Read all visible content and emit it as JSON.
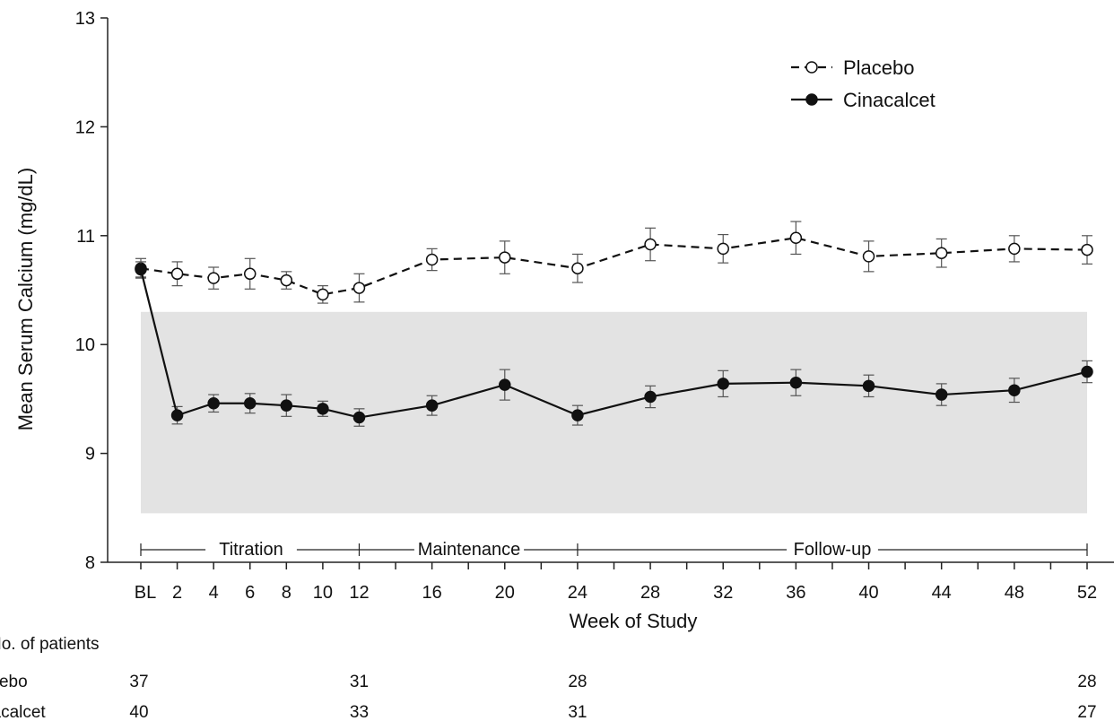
{
  "chart_data": {
    "type": "line",
    "xlabel": "Week of Study",
    "ylabel": "Mean Serum Calcium (mg/dL)",
    "ylim": [
      8,
      13
    ],
    "yticks": [
      8,
      9,
      10,
      11,
      12,
      13
    ],
    "xticks": [
      {
        "value": 0,
        "label": "BL"
      },
      {
        "value": 2,
        "label": "2"
      },
      {
        "value": 4,
        "label": "4"
      },
      {
        "value": 6,
        "label": "6"
      },
      {
        "value": 8,
        "label": "8"
      },
      {
        "value": 10,
        "label": "10"
      },
      {
        "value": 12,
        "label": "12"
      },
      {
        "value": 16,
        "label": "16"
      },
      {
        "value": 20,
        "label": "20"
      },
      {
        "value": 24,
        "label": "24"
      },
      {
        "value": 28,
        "label": "28"
      },
      {
        "value": 32,
        "label": "32"
      },
      {
        "value": 36,
        "label": "36"
      },
      {
        "value": 40,
        "label": "40"
      },
      {
        "value": 44,
        "label": "44"
      },
      {
        "value": 48,
        "label": "48"
      },
      {
        "value": 52,
        "label": "52"
      }
    ],
    "normal_range_band": {
      "x": [
        0,
        52
      ],
      "y": [
        8.45,
        10.3
      ],
      "color": "#e3e3e3"
    },
    "legend": {
      "placement": "top-right"
    },
    "grid": false,
    "series": [
      {
        "name": "Placebo",
        "style": "dashed",
        "marker": "open-circle",
        "x": [
          0,
          2,
          4,
          6,
          8,
          10,
          12,
          16,
          20,
          24,
          28,
          32,
          36,
          40,
          44,
          48,
          52
        ],
        "y": [
          10.7,
          10.65,
          10.61,
          10.65,
          10.59,
          10.46,
          10.52,
          10.78,
          10.8,
          10.7,
          10.92,
          10.88,
          10.98,
          10.81,
          10.84,
          10.88,
          10.87
        ],
        "err": [
          0.09,
          0.11,
          0.1,
          0.14,
          0.08,
          0.08,
          0.13,
          0.1,
          0.15,
          0.13,
          0.15,
          0.13,
          0.15,
          0.14,
          0.13,
          0.12,
          0.13
        ]
      },
      {
        "name": "Cinacalcet",
        "style": "solid",
        "marker": "filled-circle",
        "x": [
          0,
          2,
          4,
          6,
          8,
          10,
          12,
          16,
          20,
          24,
          28,
          32,
          36,
          40,
          44,
          48,
          52
        ],
        "y": [
          10.69,
          9.35,
          9.46,
          9.46,
          9.44,
          9.41,
          9.33,
          9.44,
          9.63,
          9.35,
          9.52,
          9.64,
          9.65,
          9.62,
          9.54,
          9.58,
          9.75
        ],
        "err": [
          0.07,
          0.08,
          0.08,
          0.09,
          0.1,
          0.07,
          0.08,
          0.09,
          0.14,
          0.09,
          0.1,
          0.12,
          0.12,
          0.1,
          0.1,
          0.11,
          0.1
        ]
      }
    ],
    "phases": [
      {
        "label": "Titration",
        "from": 0,
        "to": 12
      },
      {
        "label": "Maintenance",
        "from": 12,
        "to": 24
      },
      {
        "label": "Follow-up",
        "from": 24,
        "to": 52
      }
    ]
  },
  "patients": {
    "title": "No. of patients",
    "rows": [
      {
        "label": "Placebo",
        "counts": [
          {
            "week": 0,
            "n": "37"
          },
          {
            "week": 12,
            "n": "31"
          },
          {
            "week": 24,
            "n": "28"
          },
          {
            "week": 52,
            "n": "28"
          }
        ]
      },
      {
        "label": "Cinacalcet",
        "counts": [
          {
            "week": 0,
            "n": "40"
          },
          {
            "week": 12,
            "n": "33"
          },
          {
            "week": 24,
            "n": "31"
          },
          {
            "week": 52,
            "n": "27"
          }
        ]
      }
    ]
  }
}
